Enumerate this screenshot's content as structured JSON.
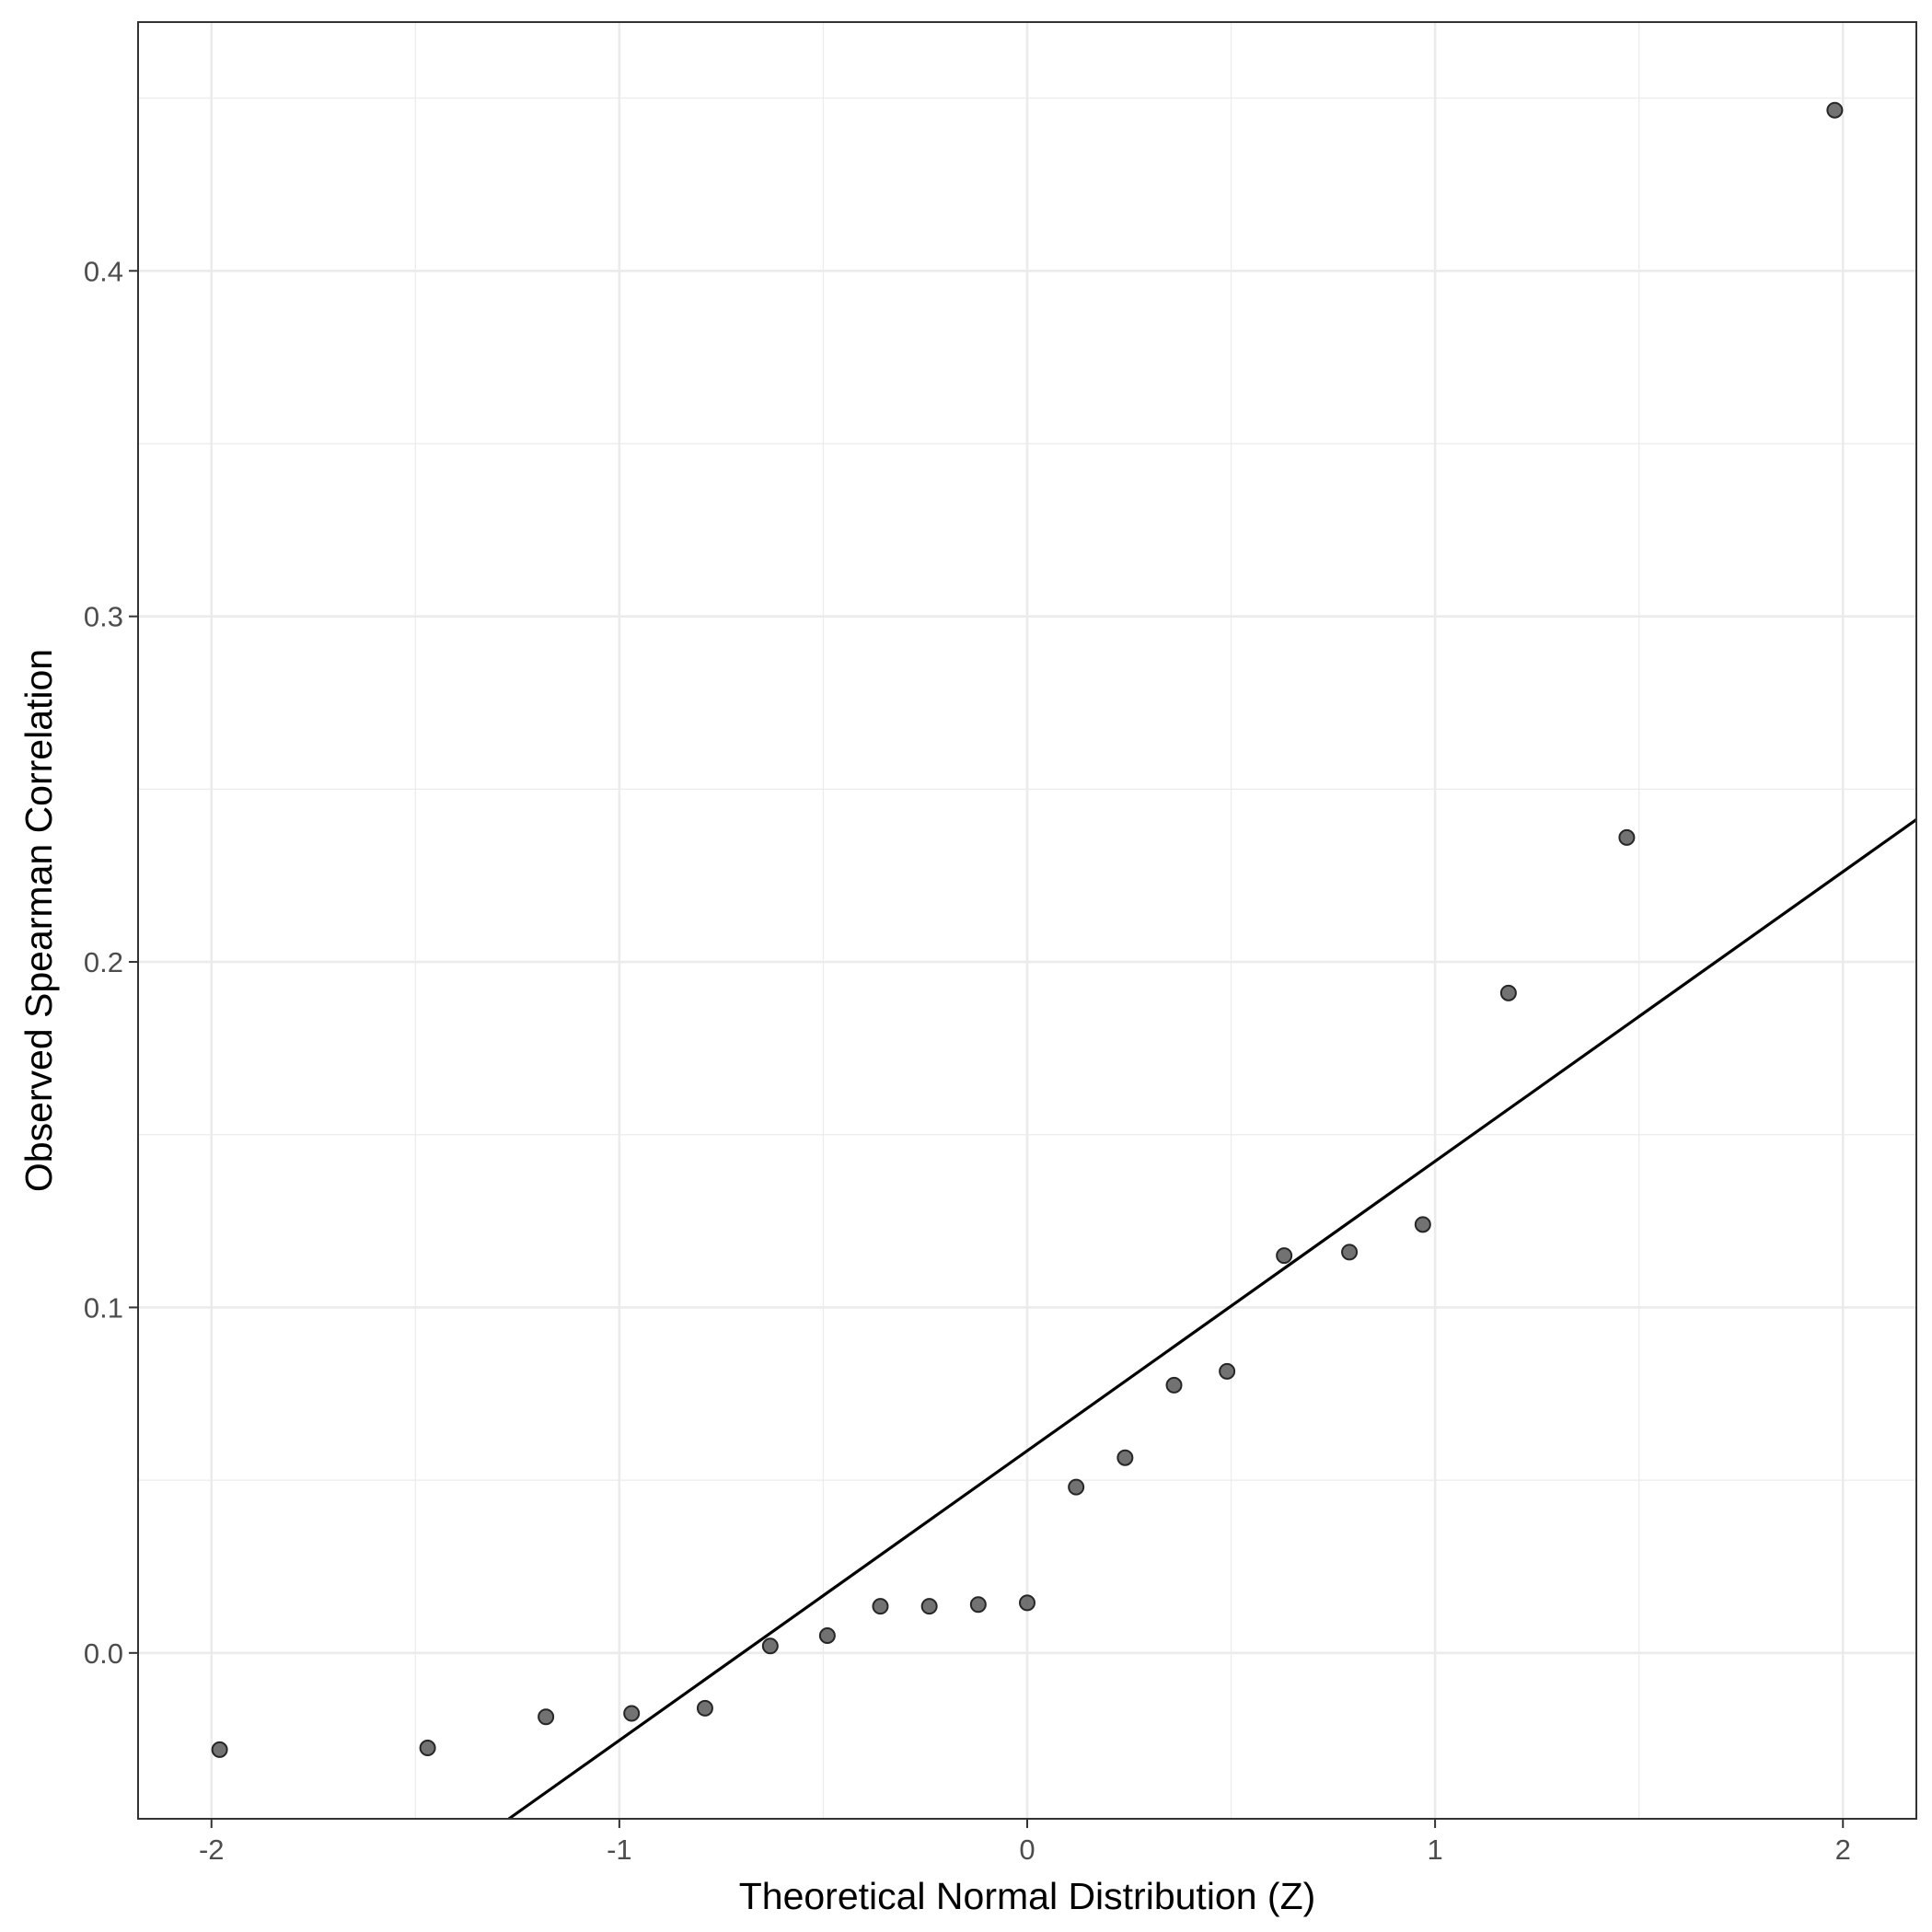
{
  "chart_data": {
    "type": "scatter",
    "title": "",
    "xlabel": "Theoretical Normal Distribution (Z)",
    "ylabel": "Observed Spearman Correlation",
    "xlim": [
      -2.18,
      2.18
    ],
    "ylim": [
      -0.048,
      0.472
    ],
    "x_ticks": [
      -2,
      -1,
      0,
      1,
      2
    ],
    "x_tick_labels": [
      "-2",
      "-1",
      "0",
      "1",
      "2"
    ],
    "y_ticks": [
      0.0,
      0.1,
      0.2,
      0.3,
      0.4
    ],
    "y_tick_labels": [
      "0.0",
      "0.1",
      "0.2",
      "0.3",
      "0.4"
    ],
    "grid": true,
    "points": {
      "x": [
        -1.98,
        -1.47,
        -1.18,
        -0.97,
        -0.79,
        -0.63,
        -0.49,
        -0.36,
        -0.24,
        -0.12,
        0.0,
        0.12,
        0.24,
        0.36,
        0.49,
        0.63,
        0.79,
        0.97,
        1.18,
        1.47,
        1.98
      ],
      "y": [
        -0.028,
        -0.0275,
        -0.0185,
        -0.0175,
        -0.016,
        0.002,
        0.005,
        0.0135,
        0.0135,
        0.014,
        0.0145,
        0.048,
        0.0565,
        0.0775,
        0.0815,
        0.115,
        0.116,
        0.124,
        0.191,
        0.236,
        0.4465
      ],
      "color": "#595959"
    },
    "reference_line": {
      "intercept": 0.0585,
      "slope": 0.0838,
      "color": "#000000"
    }
  }
}
